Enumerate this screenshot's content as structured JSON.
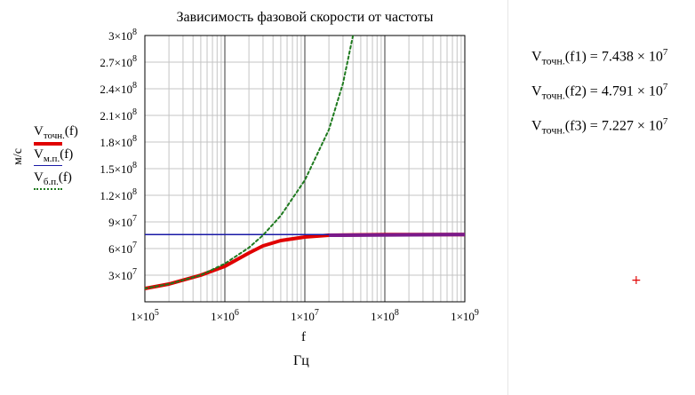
{
  "title": "Зависимость фазовой скорости от частоты",
  "y_unit_label": "м/с",
  "x_var_label": "f",
  "x_unit_label": "Гц",
  "legend": [
    {
      "var": "V",
      "sub": "точн.",
      "arg": "(f)",
      "color": "#e00000",
      "style": "thick"
    },
    {
      "var": "V",
      "sub": "м.п.",
      "arg": "(f)",
      "color": "#1a1aa6",
      "style": "solid"
    },
    {
      "var": "V",
      "sub": "б.п.",
      "arg": "(f)",
      "color": "#1f7a1f",
      "style": "dotted"
    }
  ],
  "results": [
    {
      "var": "V",
      "sub": "точн.",
      "arg": "(f1)",
      "eq": "=",
      "mantissa": "7.438",
      "times": "× 10",
      "exp": "7"
    },
    {
      "var": "V",
      "sub": "точн.",
      "arg": "(f2)",
      "eq": "=",
      "mantissa": "4.791",
      "times": "× 10",
      "exp": "7"
    },
    {
      "var": "V",
      "sub": "точн.",
      "arg": "(f3)",
      "eq": "=",
      "mantissa": "7.227",
      "times": "× 10",
      "exp": "7"
    }
  ],
  "marker_glyph": "+",
  "chart_data": {
    "type": "line",
    "title": "Зависимость фазовой скорости от частоты",
    "xlabel": "f",
    "ylabel": "м/с",
    "x_scale": "log",
    "xlim": [
      100000,
      1000000000
    ],
    "ylim": [
      0,
      300000000
    ],
    "grid": true,
    "x_ticks": [
      {
        "value": 100000,
        "mant": "1×10",
        "exp": "5"
      },
      {
        "value": 1000000,
        "mant": "1×10",
        "exp": "6"
      },
      {
        "value": 10000000,
        "mant": "1×10",
        "exp": "7"
      },
      {
        "value": 100000000,
        "mant": "1×10",
        "exp": "8"
      },
      {
        "value": 1000000000,
        "mant": "1×10",
        "exp": "9"
      }
    ],
    "y_ticks": [
      {
        "value": 30000000,
        "mant": "3×10",
        "exp": "7"
      },
      {
        "value": 60000000,
        "mant": "6×10",
        "exp": "7"
      },
      {
        "value": 90000000,
        "mant": "9×10",
        "exp": "7"
      },
      {
        "value": 120000000,
        "mant": "1.2×10",
        "exp": "8"
      },
      {
        "value": 150000000,
        "mant": "1.5×10",
        "exp": "8"
      },
      {
        "value": 180000000,
        "mant": "1.8×10",
        "exp": "8"
      },
      {
        "value": 210000000,
        "mant": "2.1×10",
        "exp": "8"
      },
      {
        "value": 240000000,
        "mant": "2.4×10",
        "exp": "8"
      },
      {
        "value": 270000000,
        "mant": "2.7×10",
        "exp": "8"
      },
      {
        "value": 300000000,
        "mant": "3×10",
        "exp": "8"
      }
    ],
    "series": [
      {
        "name": "Vточн.(f)",
        "color": "#e00000",
        "style": "thick",
        "x": [
          100000,
          200000,
          500000,
          1000000,
          2000000,
          3000000,
          5000000,
          10000000,
          20000000,
          100000000,
          1000000000
        ],
        "y": [
          15000000,
          20000000,
          30000000,
          40000000,
          55000000,
          63000000,
          69000000,
          73000000,
          75000000,
          75800000,
          75800000
        ]
      },
      {
        "name": "Vм.п.(f)",
        "color": "#1a1aa6",
        "style": "solid",
        "x": [
          100000,
          1000000000
        ],
        "y": [
          75800000,
          75800000
        ]
      },
      {
        "name": "Vб.п.(f)",
        "color": "#1f7a1f",
        "style": "dotted",
        "x": [
          100000,
          200000,
          500000,
          1000000,
          2000000,
          3000000,
          5000000,
          10000000,
          20000000,
          30000000,
          40000000
        ],
        "y": [
          15000000,
          20000000,
          30000000,
          43000000,
          61000000,
          75000000,
          97000000,
          137000000,
          194000000,
          246000000,
          300000000
        ]
      }
    ]
  }
}
